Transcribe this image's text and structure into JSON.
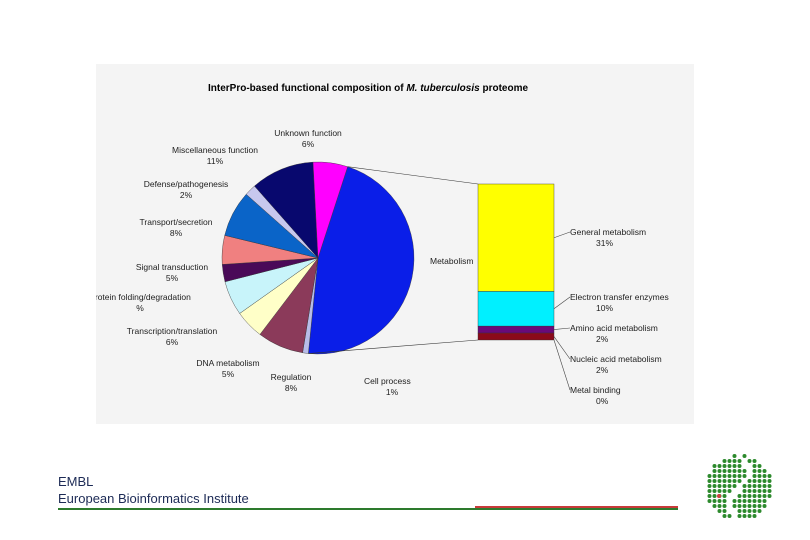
{
  "footer": {
    "org": "EMBL",
    "institute": "European Bioinformatics Institute"
  },
  "logo": {
    "icon": "embl-ebi-helix-logo-icon",
    "color": "#2d8a2d"
  },
  "chart_data": {
    "type": "pie",
    "title": "InterPro-based functional composition of M. tuberculosis proteome",
    "title_prefix": "InterPro-based functional composition of ",
    "title_italic": "M. tuberculosis",
    "title_suffix": " proteome",
    "slices": [
      {
        "label": "Metabolism",
        "value": "",
        "color": "#0a1ee8"
      },
      {
        "label": "Cell process",
        "value": "1%",
        "color": "#b8bce8"
      },
      {
        "label": "Regulation",
        "value": "8%",
        "color": "#8b3a5a"
      },
      {
        "label": "DNA metabolism",
        "value": "5%",
        "color": "#ffffc8"
      },
      {
        "label": "Transcription/translation",
        "value": "6%",
        "color": "#c8f4fa"
      },
      {
        "label": "Protein folding/degradation",
        "value": "%",
        "color": "#4a0a58"
      },
      {
        "label": "Signal transduction",
        "value": "5%",
        "color": "#f08080"
      },
      {
        "label": "Transport/secretion",
        "value": "8%",
        "color": "#0a64c8"
      },
      {
        "label": "Defense/pathogenesis",
        "value": "2%",
        "color": "#c8c8ee"
      },
      {
        "label": "Miscellaneous function",
        "value": "11%",
        "color": "#08086e"
      },
      {
        "label": "Unknown function",
        "value": "6%",
        "color": "#ff00ff"
      }
    ],
    "slice_values": [
      48,
      1,
      8,
      5,
      6,
      3,
      5,
      8,
      2,
      11,
      6
    ],
    "breakdown_of": "Metabolism",
    "breakdown": [
      {
        "label": "General metabolism",
        "value": "31%",
        "num": 31,
        "color": "#ffff00"
      },
      {
        "label": "Electron transfer enzymes",
        "value": "10%",
        "num": 10,
        "color": "#00f0ff"
      },
      {
        "label": "Amino acid metabolism",
        "value": "2%",
        "num": 2,
        "color": "#6a0a7a"
      },
      {
        "label": "Nucleic acid metabolism",
        "value": "2%",
        "num": 2,
        "color": "#8b0a1a"
      },
      {
        "label": "Metal binding",
        "value": "0%",
        "num": 0,
        "color": "#ffffff"
      }
    ]
  }
}
